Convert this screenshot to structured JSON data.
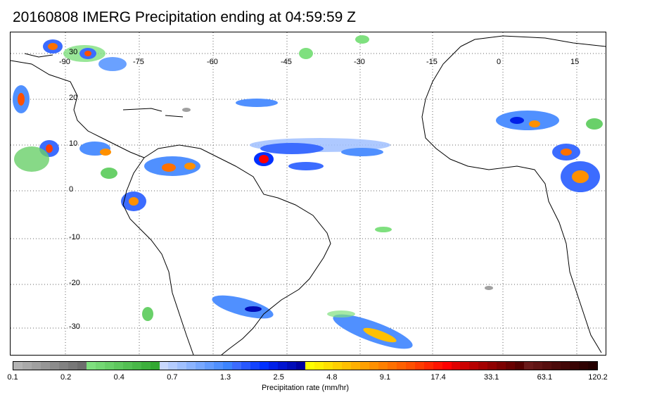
{
  "title": "20160808 IMERG Precipitation ending at 04:59:59 Z",
  "map": {
    "lon_labels": [
      "-90",
      "-75",
      "-60",
      "-45",
      "-30",
      "-15",
      "0",
      "15"
    ],
    "lat_labels": [
      "30",
      "20",
      "10",
      "0",
      "-10",
      "-20",
      "-30"
    ],
    "grid_style": "dotted"
  },
  "colorbar": {
    "title": "Precipitation rate (mm/hr)",
    "labels": [
      "0.1",
      "0.2",
      "0.4",
      "0.7",
      "1.3",
      "2.5",
      "4.8",
      "9.1",
      "17.4",
      "33.1",
      "63.1",
      "120.2"
    ],
    "colors": [
      "#b4b4b4",
      "#aaaaaa",
      "#a0a0a0",
      "#969696",
      "#8c8c8c",
      "#828282",
      "#787878",
      "#6e6e6e",
      "#7fe07f",
      "#74d874",
      "#69d069",
      "#5ec85e",
      "#53c053",
      "#48b848",
      "#3db03d",
      "#32a832",
      "#c8d8ff",
      "#b4ccff",
      "#a0c0ff",
      "#8cb4ff",
      "#78a8ff",
      "#649cff",
      "#5090ff",
      "#3c84ff",
      "#3c6cff",
      "#2858ff",
      "#1444ff",
      "#0030ff",
      "#0020e8",
      "#0014d0",
      "#000cb8",
      "#0000a0",
      "#ffff00",
      "#fff000",
      "#ffe000",
      "#ffd000",
      "#ffc000",
      "#ffb000",
      "#ffa000",
      "#ff9000",
      "#ff8000",
      "#ff7000",
      "#ff6000",
      "#ff5000",
      "#ff3c00",
      "#ff2800",
      "#ff1400",
      "#ff0000",
      "#e00000",
      "#cc0000",
      "#b80000",
      "#a40000",
      "#900000",
      "#7c0000",
      "#680000",
      "#540000",
      "#6a1a1a",
      "#601414",
      "#560e0e",
      "#4c0a0a",
      "#420606",
      "#380303",
      "#2e0101",
      "#240000"
    ]
  }
}
